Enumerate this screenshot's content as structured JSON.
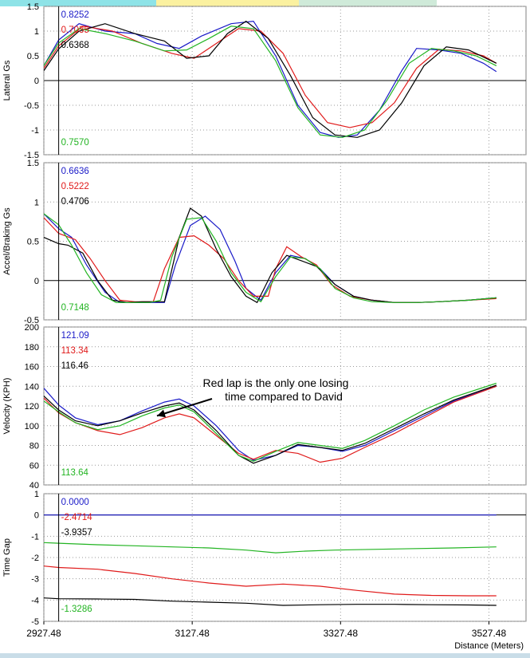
{
  "chart_data": {
    "type": "line",
    "x_label": "Distance (Meters)",
    "x_ticks": [
      "2927.48",
      "3127.48",
      "3327.48",
      "3527.48"
    ],
    "x_tick_values": [
      2927.48,
      3127.48,
      3327.48,
      3527.48
    ],
    "xlim": [
      2927.48,
      3577.48
    ],
    "cursor_x": 2947.48,
    "colors": {
      "blue": "#1a1ac8",
      "red": "#e01a1a",
      "black": "#000000",
      "green": "#22b422"
    },
    "top_tabs": [
      {
        "color": "#8ee3e7",
        "text": ""
      },
      {
        "color": "#fbf1a0",
        "text": ""
      },
      {
        "color": "#cfead9",
        "text": ""
      }
    ],
    "annotation": {
      "line1": "Red lap is the only one losing",
      "line2": "time compared to David",
      "arrow_target": [
        3080,
        110
      ]
    },
    "panels": [
      {
        "ylabel": "Lateral Gs",
        "ylim": [
          -1.5,
          1.5
        ],
        "y_ticks": [
          "1.5",
          "1",
          "0.5",
          "0",
          "-0.5",
          "-1",
          "-1.5"
        ],
        "y_tick_values": [
          1.5,
          1,
          0.5,
          0,
          -0.5,
          -1,
          -1.5
        ],
        "readouts": [
          {
            "color": "blue",
            "text": "0.8252"
          },
          {
            "color": "red",
            "text": "0.7035"
          },
          {
            "color": "black",
            "text": "0.6368"
          }
        ],
        "bottom_readout": {
          "color": "green",
          "text": "0.7570"
        },
        "series": [
          {
            "color": "blue",
            "x": [
              2927.48,
              2947.48,
              2975,
              3010,
              3050,
              3080,
              3110,
              3140,
              3180,
              3210,
              3240,
              3270,
              3300,
              3325,
              3350,
              3380,
              3410,
              3430,
              3460,
              3490,
              3520,
              3537.48
            ],
            "y": [
              0.3,
              0.82,
              1.15,
              1.0,
              0.95,
              0.75,
              0.65,
              0.9,
              1.15,
              1.2,
              0.5,
              -0.5,
              -1.05,
              -1.15,
              -1.1,
              -0.6,
              0.2,
              0.65,
              0.62,
              0.55,
              0.35,
              0.18
            ]
          },
          {
            "color": "red",
            "x": [
              2927.48,
              2947.48,
              2980,
              3020,
              3060,
              3100,
              3130,
              3160,
              3190,
              3220,
              3250,
              3280,
              3310,
              3340,
              3370,
              3400,
              3430,
              3460,
              3490,
              3520,
              3537.48
            ],
            "y": [
              0.25,
              0.7,
              1.1,
              1.0,
              0.75,
              0.55,
              0.45,
              0.75,
              1.05,
              1.0,
              0.55,
              -0.3,
              -0.85,
              -0.95,
              -0.85,
              -0.45,
              0.25,
              0.63,
              0.6,
              0.5,
              0.35
            ]
          },
          {
            "color": "black",
            "x": [
              2927.48,
              2947.48,
              2975,
              3010,
              3050,
              3090,
              3120,
              3150,
              3175,
              3200,
              3230,
              3260,
              3290,
              3320,
              3350,
              3380,
              3410,
              3440,
              3470,
              3500,
              3537.48
            ],
            "y": [
              0.2,
              0.64,
              1.0,
              1.15,
              0.95,
              0.8,
              0.45,
              0.5,
              0.95,
              1.2,
              0.85,
              0.1,
              -0.75,
              -1.1,
              -1.15,
              -1.0,
              -0.45,
              0.3,
              0.68,
              0.62,
              0.35
            ]
          },
          {
            "color": "green",
            "x": [
              2927.48,
              2947.48,
              2975,
              3010,
              3050,
              3090,
              3120,
              3150,
              3180,
              3210,
              3240,
              3270,
              3300,
              3330,
              3360,
              3390,
              3420,
              3450,
              3480,
              3510,
              3537.48
            ],
            "y": [
              0.3,
              0.76,
              1.05,
              0.95,
              0.8,
              0.6,
              0.62,
              0.85,
              1.1,
              1.05,
              0.4,
              -0.55,
              -1.1,
              -1.15,
              -1.0,
              -0.4,
              0.35,
              0.65,
              0.6,
              0.5,
              0.3
            ]
          }
        ]
      },
      {
        "ylabel": "Accel/Braking Gs",
        "ylim": [
          -0.5,
          1.5
        ],
        "y_ticks": [
          "1.5",
          "1",
          "0.5",
          "0",
          "-0.5"
        ],
        "y_tick_values": [
          1.5,
          1,
          0.5,
          0,
          -0.5
        ],
        "readouts": [
          {
            "color": "blue",
            "text": "0.6636"
          },
          {
            "color": "red",
            "text": "0.5222"
          },
          {
            "color": "black",
            "text": "0.4706"
          }
        ],
        "bottom_readout": {
          "color": "green",
          "text": "0.7148"
        },
        "series": [
          {
            "color": "blue",
            "x": [
              2927.48,
              2947.48,
              2965,
              2985,
              3010,
              3030,
              3050,
              3075,
              3090,
              3105,
              3125,
              3145,
              3165,
              3185,
              3200,
              3220,
              3240,
              3260,
              3280,
              3300,
              3320,
              3345,
              3370,
              3400,
              3430,
              3460,
              3500,
              3537.48
            ],
            "y": [
              0.85,
              0.66,
              0.55,
              0.2,
              -0.15,
              -0.28,
              -0.28,
              -0.28,
              -0.28,
              0.2,
              0.7,
              0.82,
              0.65,
              0.25,
              -0.1,
              -0.25,
              0.1,
              0.32,
              0.28,
              0.15,
              -0.05,
              -0.2,
              -0.25,
              -0.28,
              -0.28,
              -0.27,
              -0.25,
              -0.22
            ]
          },
          {
            "color": "red",
            "x": [
              2927.48,
              2947.48,
              2970,
              2990,
              3010,
              3030,
              3050,
              3075,
              3090,
              3110,
              3130,
              3150,
              3170,
              3190,
              3210,
              3230,
              3240,
              3255,
              3275,
              3295,
              3315,
              3340,
              3370,
              3400,
              3430,
              3460,
              3500,
              3537.48
            ],
            "y": [
              0.8,
              0.6,
              0.52,
              0.28,
              0.0,
              -0.25,
              -0.27,
              -0.27,
              0.15,
              0.55,
              0.57,
              0.45,
              0.28,
              0.0,
              -0.2,
              -0.2,
              0.15,
              0.43,
              0.3,
              0.2,
              -0.05,
              -0.2,
              -0.25,
              -0.28,
              -0.28,
              -0.27,
              -0.25,
              -0.23
            ]
          },
          {
            "color": "black",
            "x": [
              2927.48,
              2947.48,
              2960,
              2980,
              3000,
              3020,
              3040,
              3060,
              3075,
              3090,
              3110,
              3125,
              3140,
              3160,
              3180,
              3200,
              3215,
              3235,
              3255,
              3275,
              3295,
              3320,
              3345,
              3370,
              3400,
              3430,
              3460,
              3500,
              3537.48
            ],
            "y": [
              0.55,
              0.47,
              0.45,
              0.35,
              0.0,
              -0.25,
              -0.28,
              -0.27,
              -0.27,
              -0.27,
              0.55,
              0.92,
              0.82,
              0.4,
              0.05,
              -0.2,
              -0.28,
              0.1,
              0.32,
              0.25,
              0.18,
              -0.05,
              -0.2,
              -0.25,
              -0.28,
              -0.28,
              -0.27,
              -0.25,
              -0.22
            ]
          },
          {
            "color": "green",
            "x": [
              2927.48,
              2947.48,
              2965,
              2985,
              3005,
              3025,
              3045,
              3070,
              3085,
              3100,
              3120,
              3140,
              3160,
              3180,
              3200,
              3220,
              3240,
              3260,
              3280,
              3300,
              3320,
              3345,
              3370,
              3400,
              3430,
              3460,
              3500,
              3537.48
            ],
            "y": [
              0.85,
              0.71,
              0.45,
              0.1,
              -0.18,
              -0.28,
              -0.28,
              -0.28,
              -0.25,
              0.3,
              0.78,
              0.8,
              0.5,
              0.1,
              -0.15,
              -0.27,
              0.05,
              0.3,
              0.28,
              0.15,
              -0.1,
              -0.22,
              -0.27,
              -0.28,
              -0.28,
              -0.27,
              -0.25,
              -0.22
            ]
          }
        ]
      },
      {
        "ylabel": "Velocity (KPH)",
        "ylim": [
          40,
          200
        ],
        "y_ticks": [
          "200",
          "180",
          "160",
          "140",
          "120",
          "100",
          "80",
          "60",
          "40"
        ],
        "y_tick_values": [
          200,
          180,
          160,
          140,
          120,
          100,
          80,
          60,
          40
        ],
        "readouts": [
          {
            "color": "blue",
            "text": "121.09"
          },
          {
            "color": "red",
            "text": "113.34"
          },
          {
            "color": "black",
            "text": "116.46"
          }
        ],
        "bottom_readout": {
          "color": "green",
          "text": "113.64"
        },
        "series": [
          {
            "color": "blue",
            "x": [
              2927.48,
              2947.48,
              2970,
              3000,
              3030,
              3060,
              3090,
              3110,
              3130,
              3160,
              3190,
              3210,
              3240,
              3270,
              3300,
              3330,
              3360,
              3400,
              3440,
              3480,
              3537.48
            ],
            "y": [
              138,
              121,
              108,
              101,
              105,
              115,
              124,
              127,
              120,
              100,
              75,
              65,
              70,
              80,
              78,
              74,
              80,
              95,
              110,
              125,
              140
            ]
          },
          {
            "color": "red",
            "x": [
              2927.48,
              2947.48,
              2970,
              3000,
              3030,
              3060,
              3090,
              3110,
              3130,
              3160,
              3190,
              3210,
              3240,
              3270,
              3300,
              3330,
              3360,
              3400,
              3440,
              3480,
              3537.48
            ],
            "y": [
              128,
              113,
              103,
              95,
              91,
              98,
              108,
              112,
              108,
              90,
              72,
              66,
              75,
              72,
              63,
              67,
              78,
              92,
              108,
              124,
              140
            ]
          },
          {
            "color": "black",
            "x": [
              2927.48,
              2947.48,
              2970,
              3000,
              3030,
              3060,
              3090,
              3110,
              3130,
              3160,
              3190,
              3210,
              3240,
              3270,
              3300,
              3330,
              3360,
              3400,
              3440,
              3480,
              3537.48
            ],
            "y": [
              130,
              116,
              105,
              100,
              105,
              113,
              120,
              123,
              116,
              95,
              70,
              62,
              70,
              81,
              78,
              75,
              82,
              97,
              112,
              126,
              141
            ]
          },
          {
            "color": "green",
            "x": [
              2927.48,
              2947.48,
              2970,
              3000,
              3030,
              3060,
              3090,
              3110,
              3130,
              3160,
              3190,
              3210,
              3240,
              3270,
              3300,
              3330,
              3360,
              3400,
              3440,
              3480,
              3537.48
            ],
            "y": [
              125,
              114,
              103,
              96,
              100,
              110,
              118,
              121,
              114,
              92,
              70,
              64,
              74,
              83,
              80,
              77,
              85,
              100,
              116,
              129,
              143
            ]
          }
        ]
      },
      {
        "ylabel": "Time Gap",
        "ylim": [
          -5,
          1
        ],
        "y_ticks": [
          "1",
          "0",
          "-1",
          "-2",
          "-3",
          "-4",
          "-5"
        ],
        "y_tick_values": [
          1,
          0,
          -1,
          -2,
          -3,
          -4,
          -5
        ],
        "readouts": [
          {
            "color": "blue",
            "text": "0.0000"
          },
          {
            "color": "red",
            "text": "-2.4714"
          },
          {
            "color": "black",
            "text": "-3.9357"
          }
        ],
        "bottom_readout": {
          "color": "green",
          "text": "-1.3286"
        },
        "series": [
          {
            "color": "blue",
            "x": [
              2927.48,
              3537.48
            ],
            "y": [
              0,
              0
            ]
          },
          {
            "color": "red",
            "x": [
              2927.48,
              2947.48,
              3000,
              3050,
              3100,
              3150,
              3200,
              3250,
              3300,
              3350,
              3400,
              3450,
              3500,
              3537.48
            ],
            "y": [
              -2.4,
              -2.47,
              -2.55,
              -2.75,
              -3.0,
              -3.2,
              -3.35,
              -3.25,
              -3.35,
              -3.55,
              -3.72,
              -3.78,
              -3.8,
              -3.8
            ]
          },
          {
            "color": "black",
            "x": [
              2927.48,
              2947.48,
              3000,
              3050,
              3100,
              3150,
              3200,
              3250,
              3300,
              3350,
              3400,
              3450,
              3500,
              3537.48
            ],
            "y": [
              -3.9,
              -3.94,
              -3.95,
              -3.97,
              -4.05,
              -4.1,
              -4.15,
              -4.25,
              -4.22,
              -4.2,
              -4.2,
              -4.22,
              -4.23,
              -4.25
            ]
          },
          {
            "color": "green",
            "x": [
              2927.48,
              2947.48,
              3000,
              3050,
              3100,
              3150,
              3200,
              3240,
              3280,
              3320,
              3400,
              3480,
              3537.48
            ],
            "y": [
              -1.3,
              -1.33,
              -1.4,
              -1.45,
              -1.5,
              -1.55,
              -1.65,
              -1.78,
              -1.7,
              -1.65,
              -1.6,
              -1.55,
              -1.5
            ]
          }
        ]
      }
    ]
  }
}
